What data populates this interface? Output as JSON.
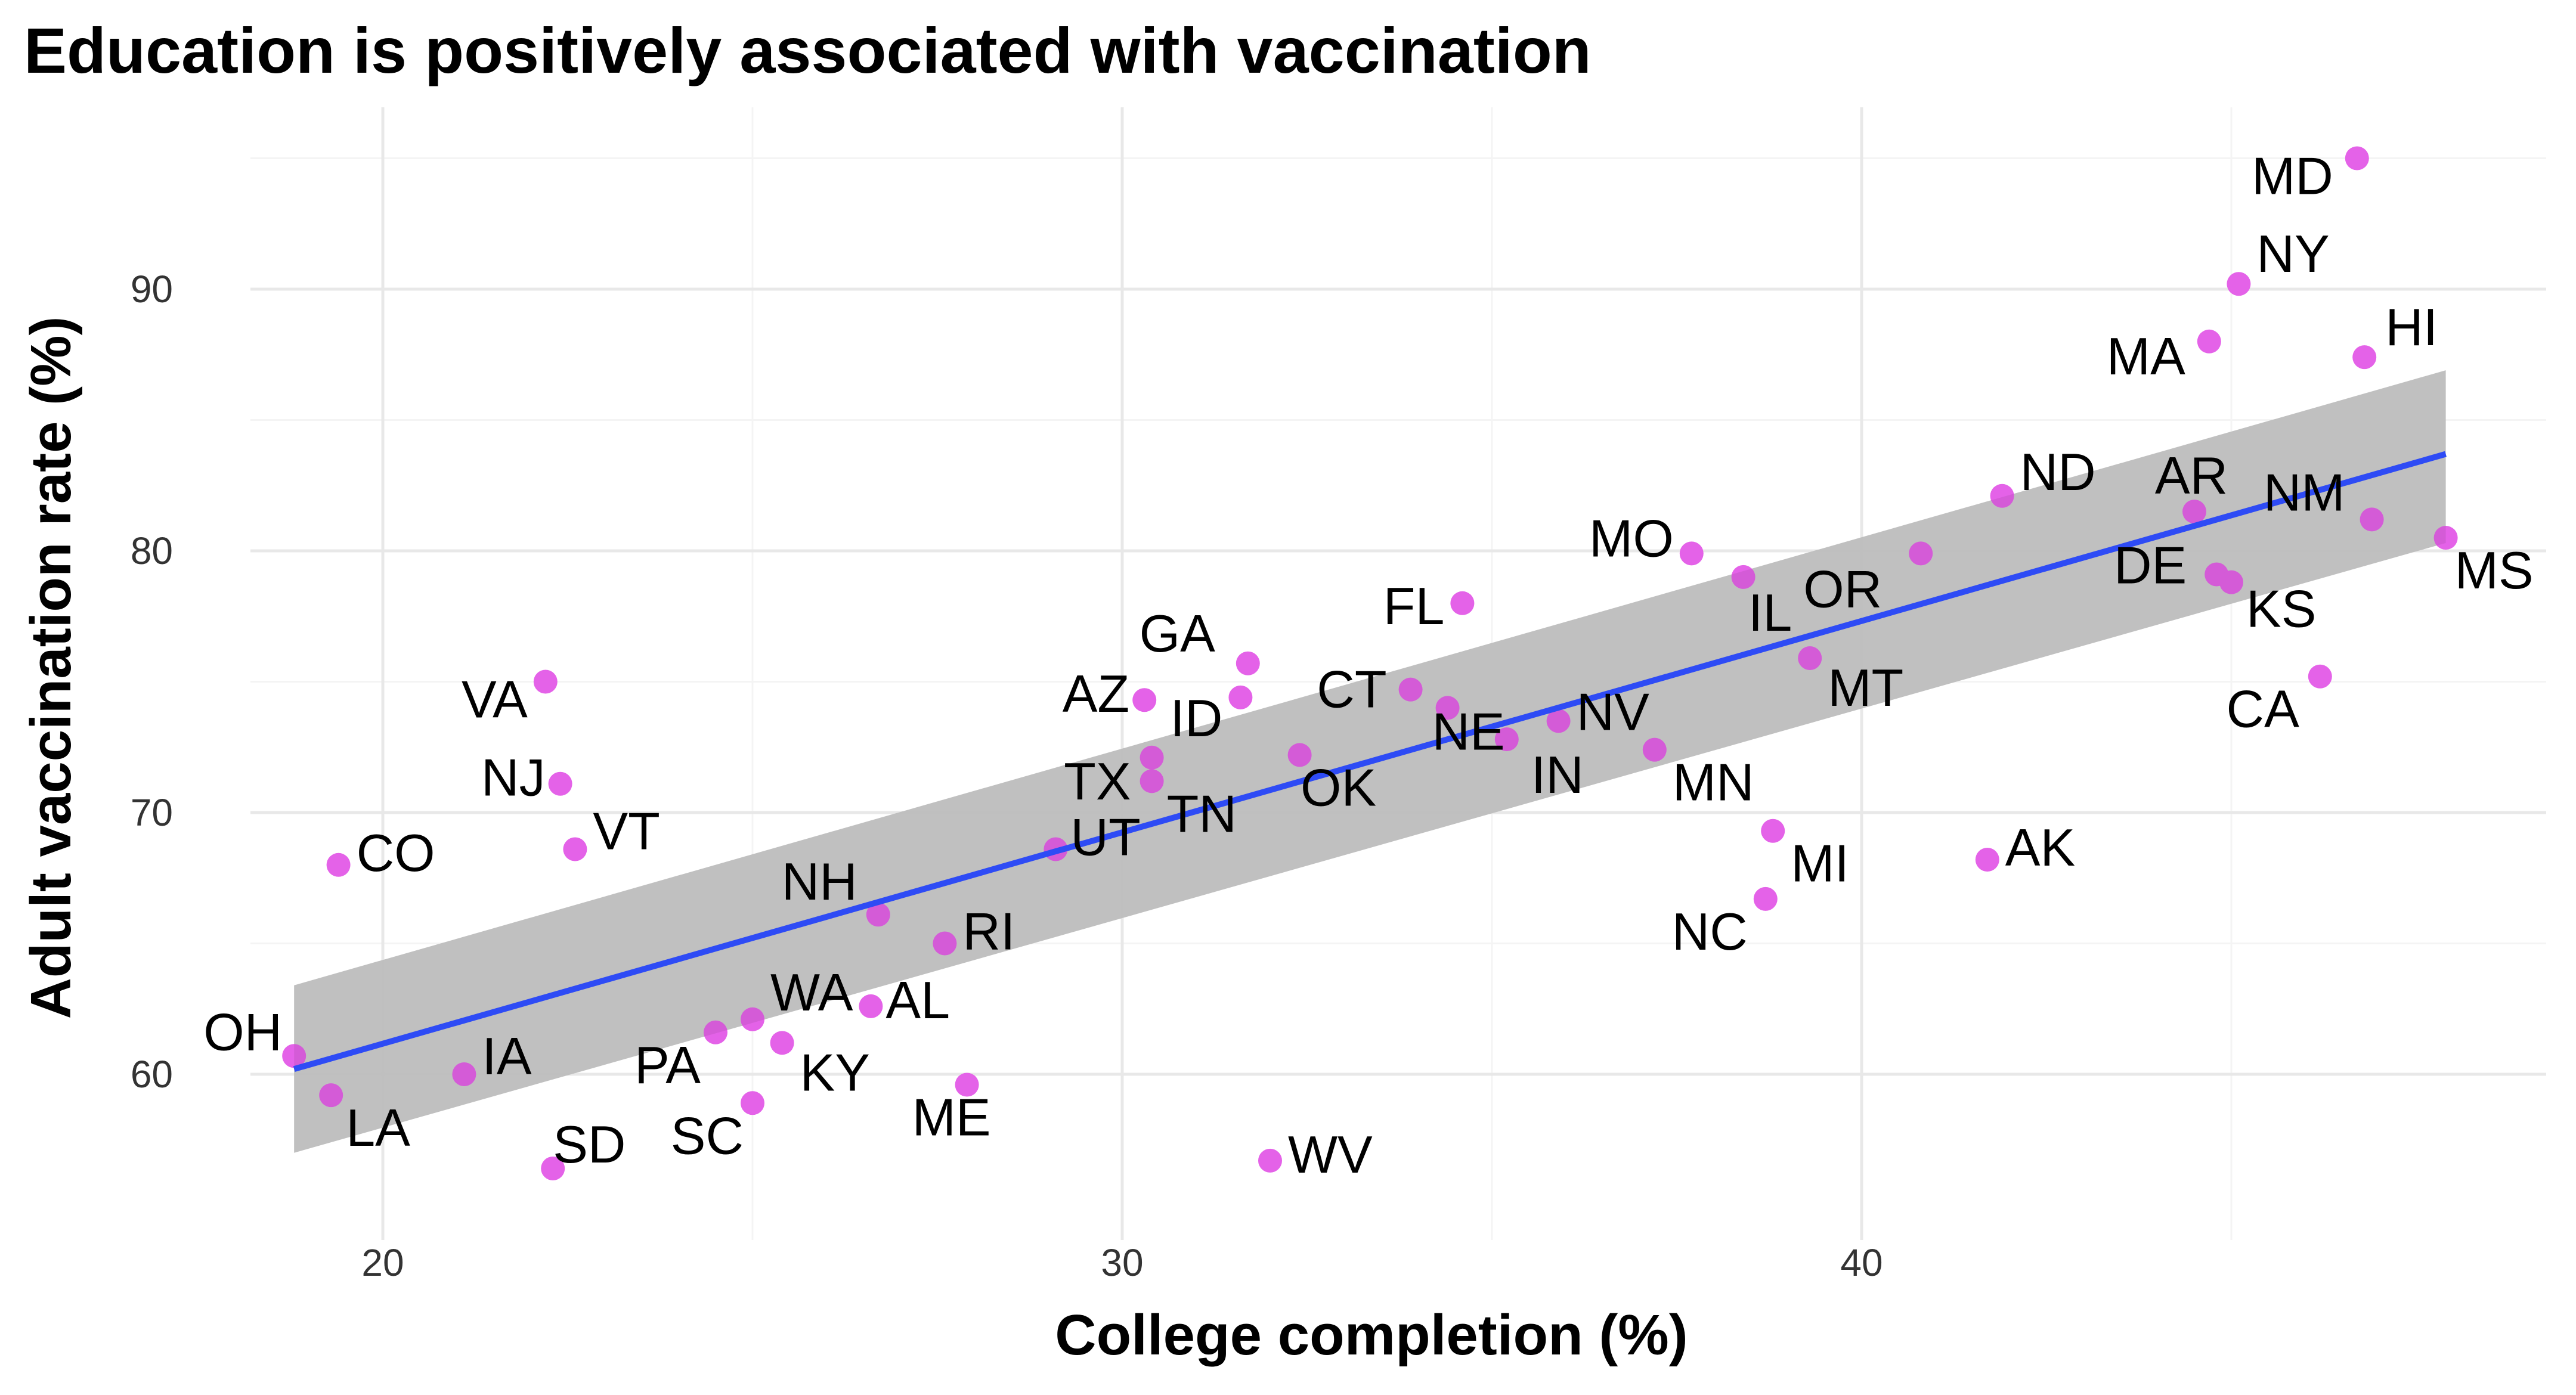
{
  "chart_data": {
    "type": "scatter",
    "title": "Education is positively associated with vaccination",
    "xlabel": "College completion (%)",
    "ylabel": "Adult vaccination rate (%)",
    "xlim": [
      17.0,
      49.0
    ],
    "ylim": [
      54.5,
      97.0
    ],
    "x_ticks": [
      20,
      30,
      40
    ],
    "y_ticks": [
      60,
      70,
      80,
      90
    ],
    "x_tick_labels": [
      "20",
      "30",
      "40"
    ],
    "y_tick_labels": [
      "60",
      "70",
      "80",
      "90"
    ],
    "grid": true,
    "point_color": "#E462E8",
    "fit_color": "#2E4BF5",
    "band_color": "#CCCCCC",
    "fit": {
      "method": "linear",
      "x": [
        18.8,
        47.9
      ],
      "y": [
        60.2,
        83.7
      ],
      "band_lower": [
        57.0,
        80.3
      ],
      "band_upper": [
        63.4,
        86.9
      ]
    },
    "points": [
      {
        "label": "MD",
        "x": 46.7,
        "y": 95.0
      },
      {
        "label": "NY",
        "x": 45.1,
        "y": 90.2
      },
      {
        "label": "MA",
        "x": 44.7,
        "y": 88.0
      },
      {
        "label": "HI",
        "x": 46.8,
        "y": 87.4
      },
      {
        "label": "ND",
        "x": 41.9,
        "y": 82.1
      },
      {
        "label": "AR",
        "x": 44.5,
        "y": 81.5
      },
      {
        "label": "NM",
        "x": 46.9,
        "y": 81.2
      },
      {
        "label": "MS",
        "x": 47.9,
        "y": 80.5
      },
      {
        "label": "DE",
        "x": 44.8,
        "y": 79.1
      },
      {
        "label": "KS",
        "x": 45.0,
        "y": 78.8
      },
      {
        "label": "CA",
        "x": 46.2,
        "y": 75.2
      },
      {
        "label": "OR",
        "x": 40.8,
        "y": 79.9
      },
      {
        "label": "MO",
        "x": 37.7,
        "y": 79.9
      },
      {
        "label": "IL",
        "x": 38.4,
        "y": 79.0
      },
      {
        "label": "MT",
        "x": 39.3,
        "y": 75.9
      },
      {
        "label": "FL",
        "x": 34.6,
        "y": 78.0
      },
      {
        "label": "GA",
        "x": 31.7,
        "y": 75.7
      },
      {
        "label": "ID",
        "x": 31.6,
        "y": 74.4
      },
      {
        "label": "AZ",
        "x": 30.3,
        "y": 74.3
      },
      {
        "label": "CT",
        "x": 33.9,
        "y": 74.7
      },
      {
        "label": "NE",
        "x": 34.4,
        "y": 74.0
      },
      {
        "label": "NV",
        "x": 35.9,
        "y": 73.5
      },
      {
        "label": "IN",
        "x": 35.2,
        "y": 72.8
      },
      {
        "label": "TX",
        "x": 30.4,
        "y": 72.1
      },
      {
        "label": "TN",
        "x": 30.4,
        "y": 71.2
      },
      {
        "label": "OK",
        "x": 32.4,
        "y": 72.2
      },
      {
        "label": "MN",
        "x": 37.2,
        "y": 72.4
      },
      {
        "label": "UT",
        "x": 29.1,
        "y": 68.6
      },
      {
        "label": "MI",
        "x": 38.8,
        "y": 69.3
      },
      {
        "label": "NC",
        "x": 38.7,
        "y": 66.7
      },
      {
        "label": "AK",
        "x": 41.7,
        "y": 68.2
      },
      {
        "label": "VA",
        "x": 22.2,
        "y": 75.0
      },
      {
        "label": "NJ",
        "x": 22.4,
        "y": 71.1
      },
      {
        "label": "VT",
        "x": 22.6,
        "y": 68.6
      },
      {
        "label": "CO",
        "x": 19.4,
        "y": 68.0
      },
      {
        "label": "NH",
        "x": 26.7,
        "y": 66.1
      },
      {
        "label": "RI",
        "x": 27.6,
        "y": 65.0
      },
      {
        "label": "AL",
        "x": 26.6,
        "y": 62.6
      },
      {
        "label": "WA",
        "x": 25.0,
        "y": 62.1
      },
      {
        "label": "KY",
        "x": 25.4,
        "y": 61.2
      },
      {
        "label": "PA",
        "x": 24.5,
        "y": 61.6
      },
      {
        "label": "OH",
        "x": 18.8,
        "y": 60.7
      },
      {
        "label": "IA",
        "x": 21.1,
        "y": 60.0
      },
      {
        "label": "LA",
        "x": 19.3,
        "y": 59.2
      },
      {
        "label": "SC",
        "x": 25.0,
        "y": 58.9
      },
      {
        "label": "ME",
        "x": 27.9,
        "y": 59.6
      },
      {
        "label": "SD",
        "x": 22.3,
        "y": 56.4
      },
      {
        "label": "WV",
        "x": 32.0,
        "y": 56.7
      }
    ]
  }
}
